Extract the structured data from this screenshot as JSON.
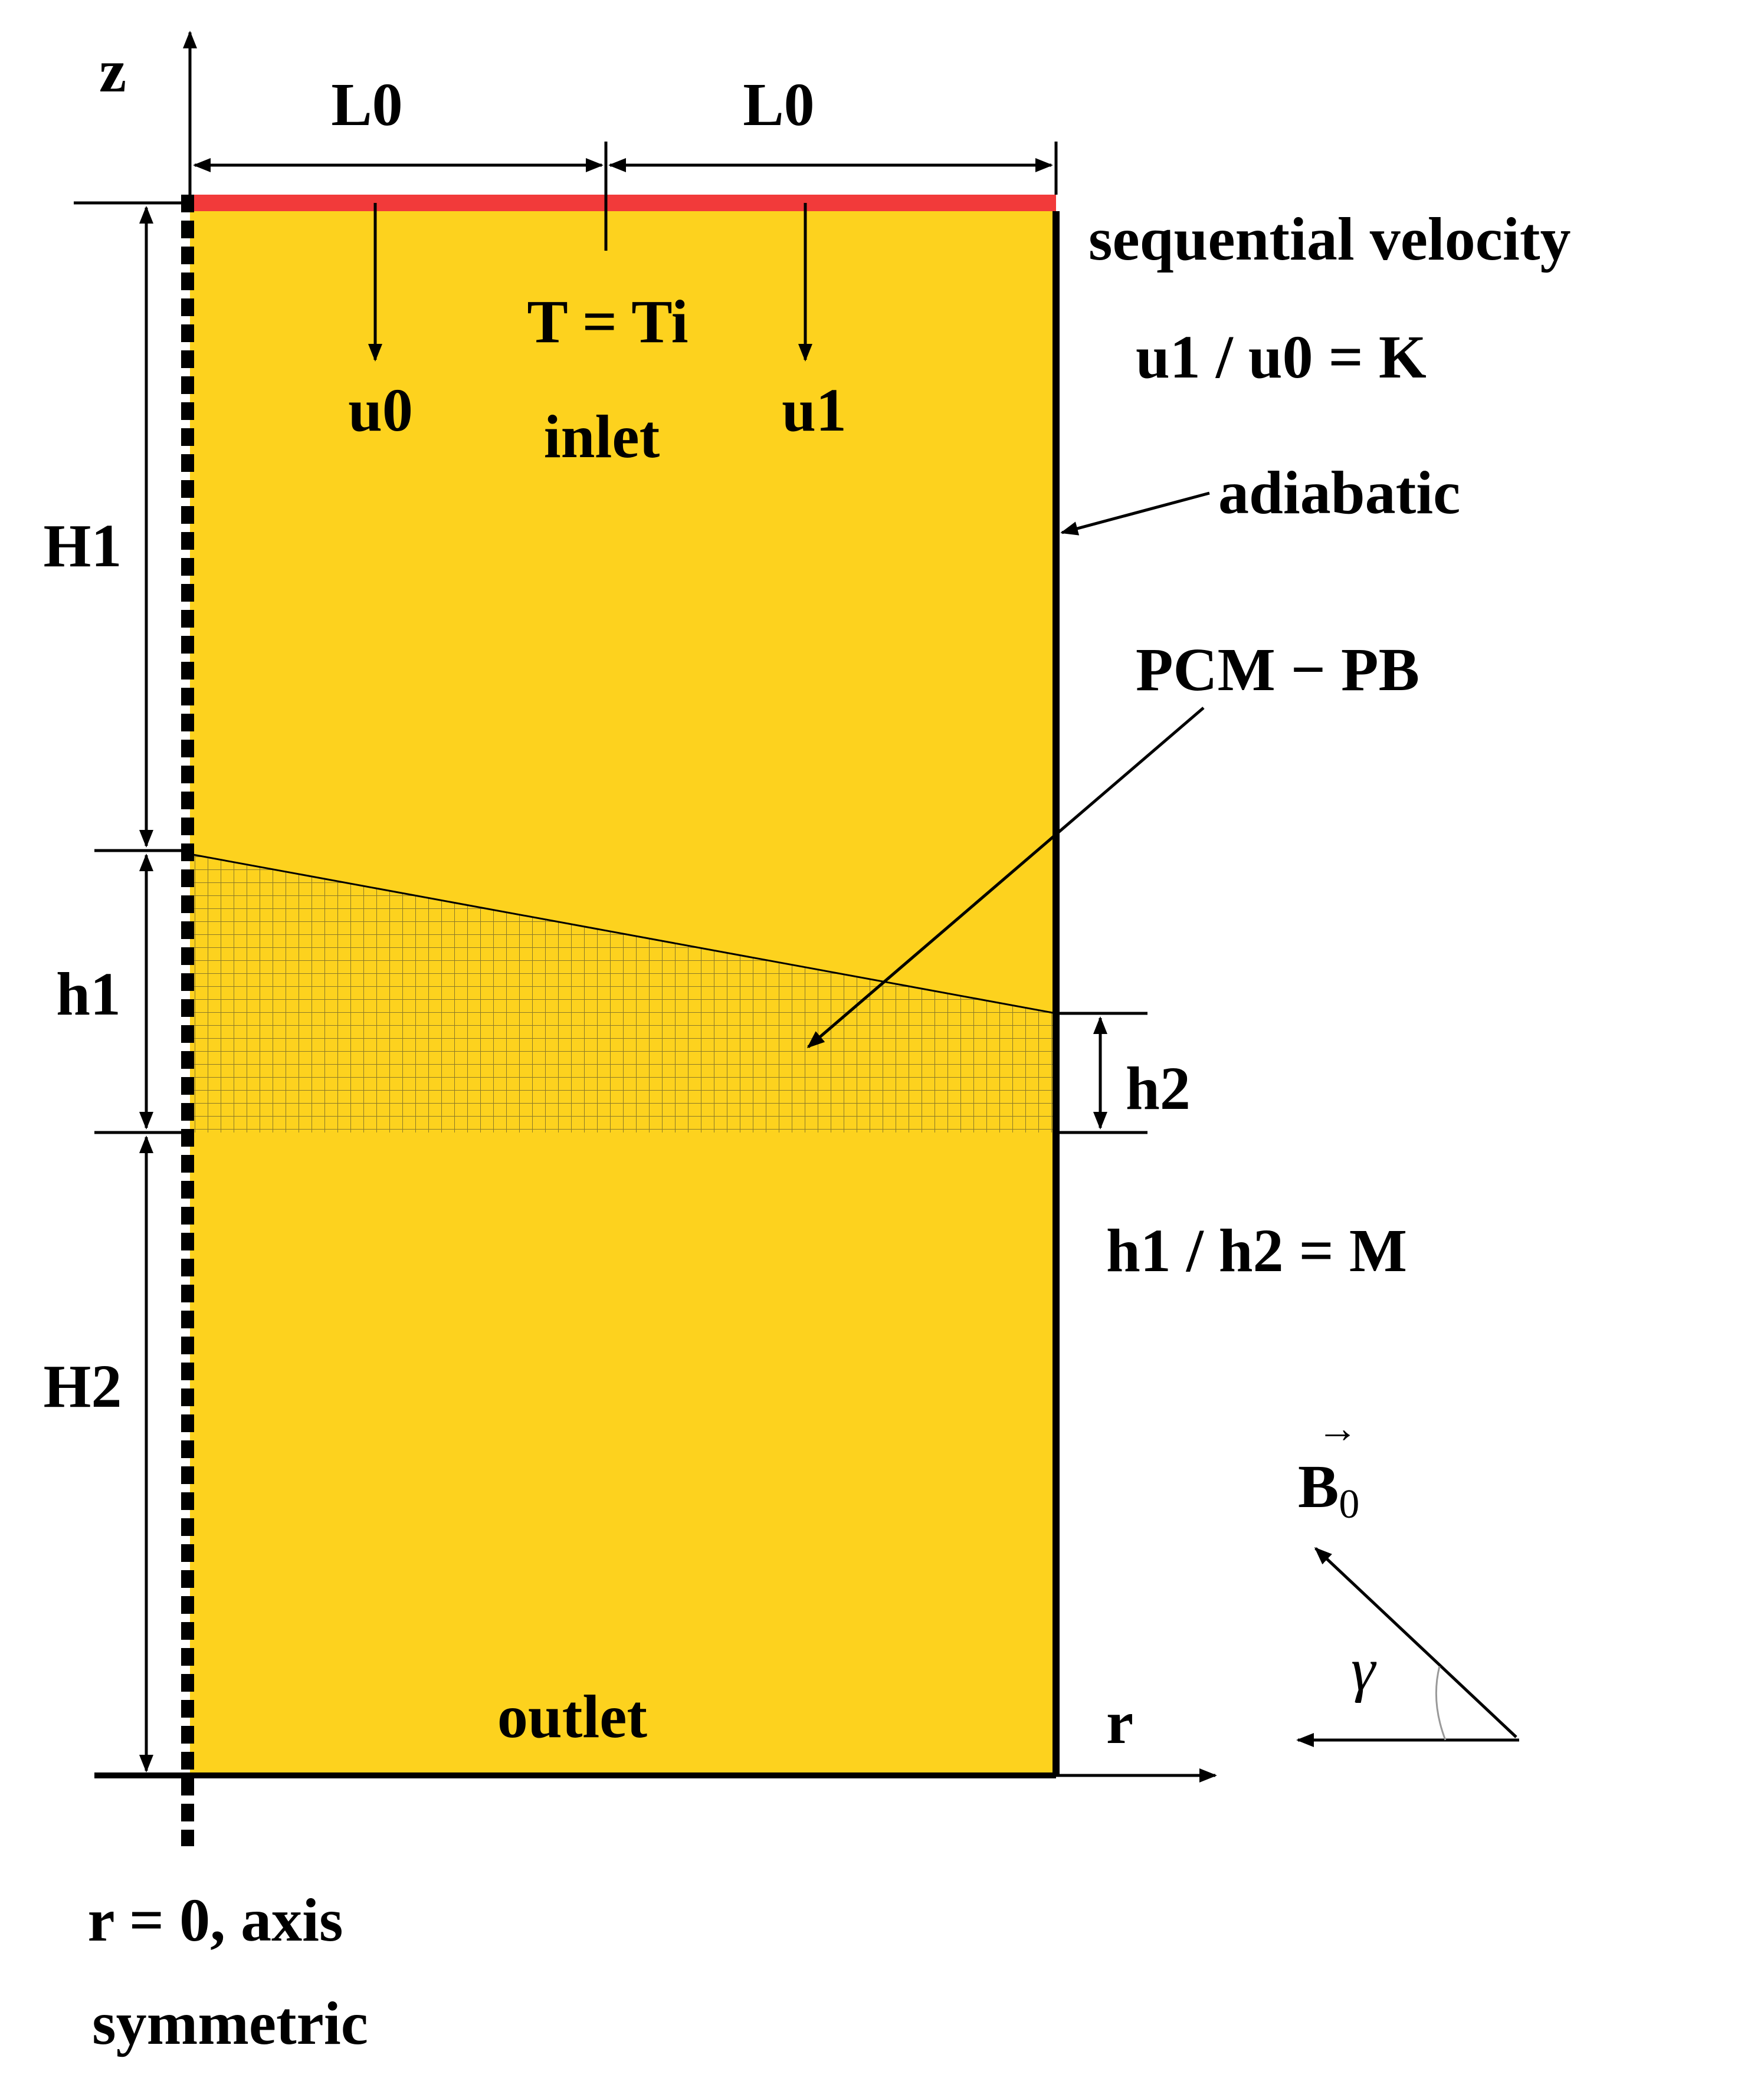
{
  "colors": {
    "domain_fill": "#FDD21E",
    "inlet_bar": "#F23A3A",
    "lines": "#000000",
    "mesh": "#8C7A28"
  },
  "labels": {
    "z_axis": "z",
    "r_axis": "r",
    "L0_left": "L0",
    "L0_right": "L0",
    "H1": "H1",
    "h1": "h1",
    "h2": "h2",
    "H2": "H2",
    "u0": "u0",
    "u1": "u1",
    "T_Ti": "T = Ti",
    "inlet": "inlet",
    "outlet": "outlet",
    "sequential_velocity": "sequential velocity",
    "ratio_K": "u1 / u0 = K",
    "adiabatic": "adiabatic",
    "pcm_pb": "PCM − PB",
    "ratio_M": "h1 / h2 = M",
    "b_field": "B",
    "b_field_sub": "0",
    "gamma": "γ",
    "axis_line1": "r = 0, axis",
    "axis_line2": "symmetric"
  },
  "icons": {
    "flow_arrow": "down-arrow-icon",
    "field_vector": "vector-arrow-icon"
  }
}
